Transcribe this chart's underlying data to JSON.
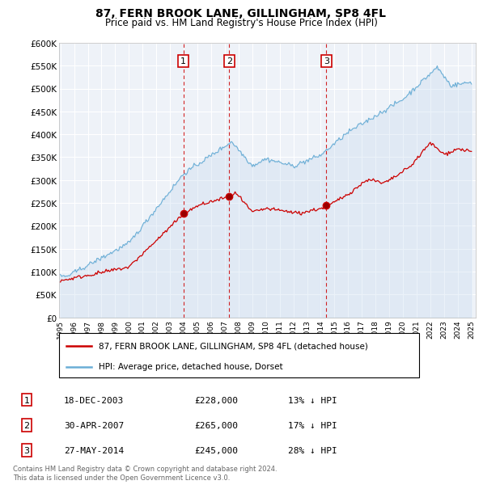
{
  "title": "87, FERN BROOK LANE, GILLINGHAM, SP8 4FL",
  "subtitle": "Price paid vs. HM Land Registry's House Price Index (HPI)",
  "hpi_color": "#6baed6",
  "hpi_fill_color": "#c6dbef",
  "property_color": "#cc0000",
  "vline_color": "#cc0000",
  "plot_bg": "#eef2f8",
  "grid_color": "#ffffff",
  "ylim": [
    0,
    600000
  ],
  "yticks": [
    0,
    50000,
    100000,
    150000,
    200000,
    250000,
    300000,
    350000,
    400000,
    450000,
    500000,
    550000,
    600000
  ],
  "transactions": [
    {
      "date": 2003.97,
      "price": 228000,
      "label": "1"
    },
    {
      "date": 2007.33,
      "price": 265000,
      "label": "2"
    },
    {
      "date": 2014.41,
      "price": 245000,
      "label": "3"
    }
  ],
  "legend_property": "87, FERN BROOK LANE, GILLINGHAM, SP8 4FL (detached house)",
  "legend_hpi": "HPI: Average price, detached house, Dorset",
  "table_rows": [
    {
      "num": "1",
      "date": "18-DEC-2003",
      "price": "£228,000",
      "pct": "13% ↓ HPI"
    },
    {
      "num": "2",
      "date": "30-APR-2007",
      "price": "£265,000",
      "pct": "17% ↓ HPI"
    },
    {
      "num": "3",
      "date": "27-MAY-2014",
      "price": "£245,000",
      "pct": "28% ↓ HPI"
    }
  ],
  "footnote": "Contains HM Land Registry data © Crown copyright and database right 2024.\nThis data is licensed under the Open Government Licence v3.0."
}
